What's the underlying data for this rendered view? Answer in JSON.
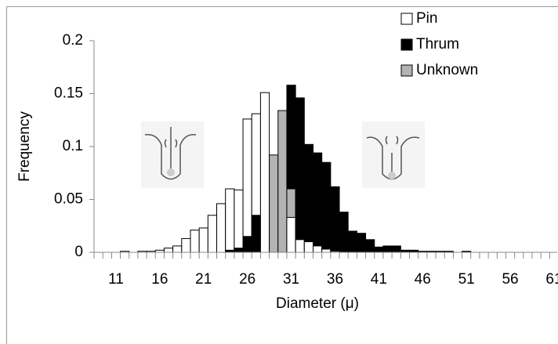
{
  "chart_data": {
    "type": "bar",
    "x_label": "Diameter (μ)",
    "y_label": "Frequency",
    "categories": [
      null,
      null,
      "11",
      null,
      null,
      null,
      null,
      "16",
      null,
      null,
      null,
      null,
      "21",
      null,
      null,
      null,
      null,
      "26",
      null,
      null,
      null,
      null,
      "31",
      null,
      null,
      null,
      null,
      "36",
      null,
      null,
      null,
      null,
      "41",
      null,
      null,
      null,
      null,
      "46",
      null,
      null,
      null,
      null,
      "51",
      null,
      null,
      null,
      null,
      "56",
      null,
      null,
      null,
      null,
      "61"
    ],
    "series": [
      {
        "name": "Pin",
        "color": "#ffffff",
        "values": [
          0,
          0,
          0,
          0.001,
          0,
          0.001,
          0.001,
          0.002,
          0.004,
          0.006,
          0.013,
          0.021,
          0.023,
          0.035,
          0.046,
          0.06,
          0.059,
          0.126,
          0.131,
          0.151,
          0,
          0,
          0.033,
          0.012,
          0.01,
          0.006,
          0.003,
          0.001,
          0,
          0,
          0,
          0,
          0,
          0,
          0,
          0,
          0,
          0,
          0,
          0,
          0,
          0,
          0,
          0,
          0,
          0,
          0,
          0,
          0,
          0,
          0,
          0,
          0
        ]
      },
      {
        "name": "Thrum",
        "color": "#000000",
        "values": [
          0,
          0,
          0,
          0,
          0,
          0,
          0,
          0,
          0,
          0,
          0,
          0,
          0,
          0,
          0,
          0.002,
          0.004,
          0.015,
          0.035,
          0,
          0,
          0,
          0.158,
          0.146,
          0.102,
          0.094,
          0.085,
          0.062,
          0.038,
          0.02,
          0.018,
          0.012,
          0.005,
          0.006,
          0.006,
          0.002,
          0.002,
          0.001,
          0.001,
          0.001,
          0.001,
          0,
          0.001,
          0,
          0,
          0,
          0,
          0,
          0,
          0,
          0,
          0,
          0
        ]
      },
      {
        "name": "Unknown",
        "color": "#b3b3b3",
        "values": [
          0,
          0,
          0,
          0,
          0,
          0,
          0,
          0,
          0,
          0,
          0,
          0,
          0,
          0,
          0,
          0,
          0,
          0,
          0,
          0,
          0.092,
          0.134,
          0.06,
          0,
          0,
          0,
          0,
          0,
          0,
          0,
          0,
          0,
          0,
          0,
          0,
          0,
          0,
          0,
          0,
          0,
          0,
          0,
          0,
          0,
          0,
          0,
          0,
          0,
          0,
          0,
          0,
          0,
          0
        ]
      }
    ],
    "ylim": [
      0,
      0.2
    ],
    "yticks": [
      0,
      0.05,
      0.1,
      0.15,
      0.2
    ],
    "grid": false,
    "legend": "top-right"
  }
}
